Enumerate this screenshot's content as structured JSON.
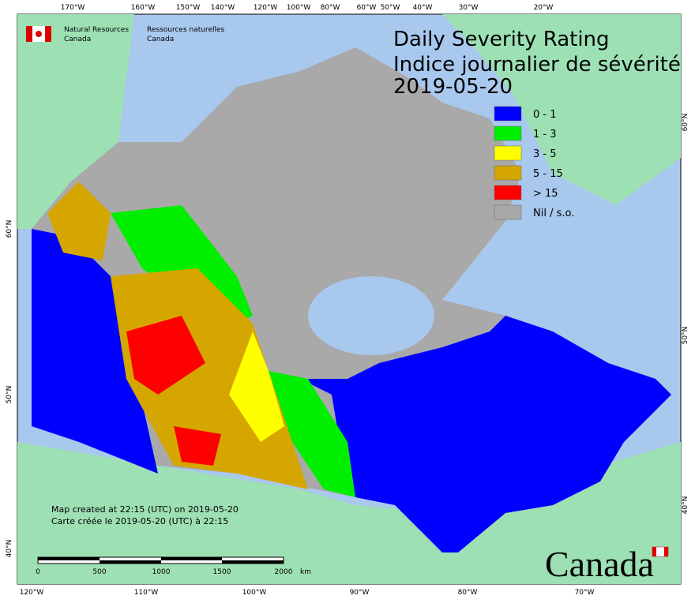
{
  "agency": {
    "en_line1": "Natural Resources",
    "en_line2": "Canada",
    "fr_line1": "Ressources naturelles",
    "fr_line2": "Canada"
  },
  "title": {
    "line1": "Daily Severity Rating",
    "line2": "Indice journalier de sévérité",
    "date": "2019-05-20"
  },
  "legend": [
    {
      "label": "0 - 1",
      "color": "#0000ff"
    },
    {
      "label": "1 - 3",
      "color": "#00ee00"
    },
    {
      "label": "3 - 5",
      "color": "#ffff00"
    },
    {
      "label": "5 - 15",
      "color": "#d6a600"
    },
    {
      "label": "> 15",
      "color": "#ff0000"
    },
    {
      "label": "Nil / s.o.",
      "color": "#a9a9a9"
    }
  ],
  "graticule": {
    "top": [
      "170°W",
      "160°W",
      "150°W",
      "140°W",
      "120°W",
      "100°W",
      "80°W",
      "60°W",
      "50°W",
      "40°W",
      "30°W",
      "20°W"
    ],
    "bottom": [
      "120°W",
      "110°W",
      "100°W",
      "90°W",
      "80°W",
      "70°W"
    ],
    "left": [
      "60°N",
      "50°N",
      "40°N"
    ],
    "right": [
      "60°N",
      "50°N",
      "40°N"
    ]
  },
  "footer": {
    "created_en": "Map created at 22:15 (UTC) on 2019-05-20",
    "created_fr": "Carte créée le 2019-05-20 (UTC) à 22:15"
  },
  "scale_bar": {
    "labels": [
      "0",
      "500",
      "1000",
      "1500",
      "2000"
    ],
    "unit": "km"
  },
  "wordmark": "Canada"
}
